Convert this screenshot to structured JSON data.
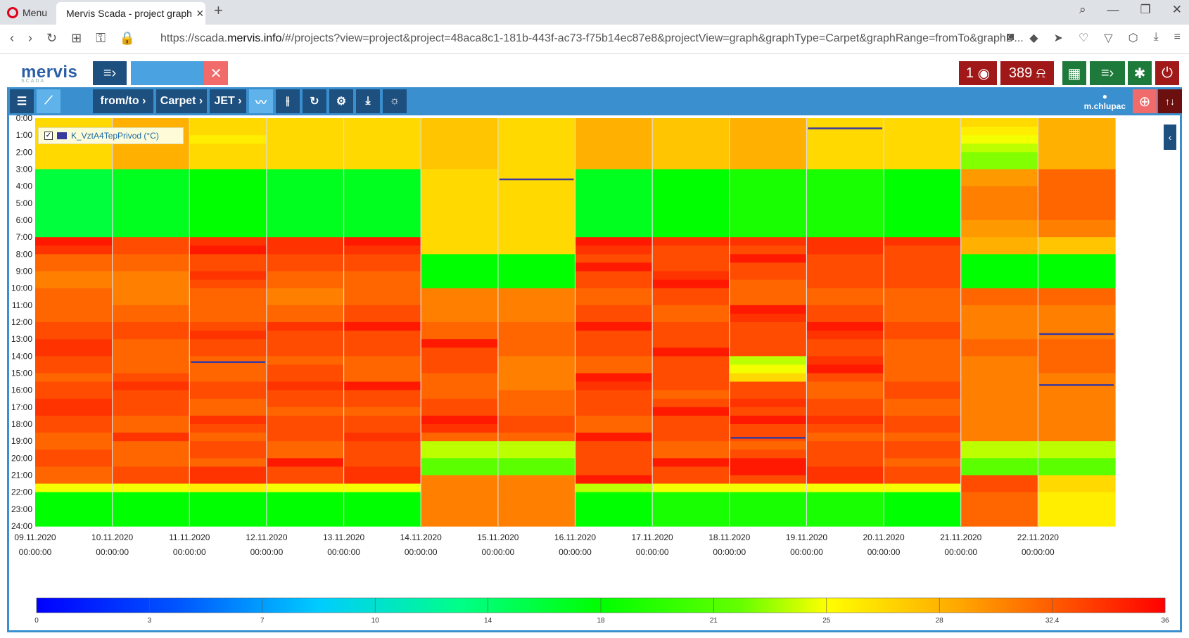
{
  "browser": {
    "menu_label": "Menu",
    "tab_title": "Mervis Scada - project graph",
    "url_prefix": "https://scada.",
    "url_domain": "mervis.info",
    "url_rest": "/#/projects?view=project&project=48aca8c1-181b-443f-ac73-f75b14ec87e8&projectView=graph&graphType=Carpet&graphRange=fromTo&graphD..."
  },
  "header": {
    "logo": "mervis",
    "logo_sub": "SCADA",
    "alarm_count": "1",
    "notification_count": "389"
  },
  "toolbar": {
    "range_label": "from/to",
    "type_label": "Carpet",
    "palette_label": "JET",
    "user": "m.chlupac"
  },
  "legend": {
    "series_name": "K_VztA4TepPrivod (°C)"
  },
  "colors": {
    "accent": "#3a8fcf",
    "dark_button": "#1d4f7f",
    "alarm_red": "#a01818",
    "green_button": "#1e7a3a",
    "gap_line": "#3a3aa0"
  },
  "chart_data": {
    "type": "heatmap",
    "title": "",
    "xlabel": "",
    "ylabel": "",
    "y_ticks": [
      "0:00",
      "1:00",
      "2:00",
      "3:00",
      "4:00",
      "5:00",
      "6:00",
      "7:00",
      "8:00",
      "9:00",
      "10:00",
      "11:00",
      "12:00",
      "13:00",
      "14:00",
      "15:00",
      "16:00",
      "17:00",
      "18:00",
      "19:00",
      "20:00",
      "21:00",
      "22:00",
      "23:00",
      "24:00"
    ],
    "x_dates": [
      "09.11.2020",
      "10.11.2020",
      "11.11.2020",
      "12.11.2020",
      "13.11.2020",
      "14.11.2020",
      "15.11.2020",
      "16.11.2020",
      "17.11.2020",
      "18.11.2020",
      "19.11.2020",
      "20.11.2020",
      "21.11.2020",
      "22.11.2020"
    ],
    "x_time": "00:00:00",
    "colorbar_ticks": [
      "0",
      "3",
      "7",
      "10",
      "14",
      "18",
      "21",
      "25",
      "28",
      "32.4",
      "36"
    ],
    "colorbar_range": [
      0,
      36
    ],
    "colorscale": "jet",
    "hours_per_cell": 0.5,
    "days": [
      [
        27,
        27,
        27,
        27,
        27,
        27,
        16,
        16,
        16,
        16,
        16,
        16,
        16,
        16,
        35,
        34,
        32,
        32,
        31,
        31,
        32,
        32,
        32,
        32,
        33,
        33,
        34,
        34,
        33,
        33,
        32,
        33,
        33,
        34,
        34,
        33,
        33,
        32,
        32,
        33,
        33,
        32,
        32,
        25,
        18,
        18,
        18,
        18
      ],
      [
        29,
        29,
        29,
        29,
        29,
        29,
        17,
        17,
        17,
        17,
        17,
        17,
        17,
        17,
        33,
        33,
        32,
        32,
        31,
        31,
        31,
        31,
        32,
        32,
        33,
        33,
        32,
        32,
        32,
        32,
        33,
        34,
        33,
        33,
        33,
        32,
        32,
        34,
        32,
        32,
        32,
        33,
        33,
        25,
        18,
        18,
        18,
        18
      ],
      [
        27,
        27,
        26,
        27,
        27,
        27,
        18,
        18,
        18,
        18,
        18,
        18,
        18,
        18,
        34,
        35,
        33,
        33,
        34,
        33,
        32,
        32,
        32,
        32,
        33,
        34,
        33,
        33,
        32,
        32,
        32,
        33,
        33,
        32,
        32,
        34,
        33,
        32,
        33,
        33,
        32,
        34,
        34,
        26,
        18,
        18,
        18,
        18
      ],
      [
        27,
        27,
        27,
        27,
        27,
        27,
        17,
        17,
        17,
        17,
        17,
        17,
        17,
        17,
        34,
        34,
        33,
        33,
        32,
        32,
        31,
        31,
        32,
        32,
        34,
        33,
        33,
        33,
        32,
        33,
        33,
        34,
        33,
        33,
        32,
        33,
        33,
        33,
        32,
        32,
        35,
        33,
        33,
        25,
        18,
        18,
        18,
        18
      ],
      [
        27,
        27,
        27,
        27,
        27,
        27,
        17,
        17,
        17,
        17,
        17,
        17,
        17,
        17,
        35,
        34,
        33,
        33,
        32,
        32,
        32,
        32,
        33,
        33,
        35,
        33,
        33,
        33,
        32,
        32,
        32,
        35,
        33,
        33,
        32,
        33,
        33,
        34,
        33,
        33,
        33,
        34,
        34,
        25,
        18,
        18,
        18,
        18
      ],
      [
        28,
        28,
        28,
        28,
        28,
        28,
        27,
        27,
        27,
        27,
        27,
        27,
        27,
        27,
        27,
        27,
        18,
        18,
        18,
        18,
        31,
        31,
        31,
        31,
        32,
        32,
        35,
        33,
        33,
        33,
        32,
        32,
        32,
        33,
        33,
        35,
        34,
        32,
        24,
        24,
        22,
        22,
        31,
        31,
        31,
        31,
        31,
        31
      ],
      [
        27,
        27,
        27,
        27,
        27,
        27,
        27,
        27,
        27,
        27,
        27,
        27,
        27,
        27,
        27,
        27,
        18,
        18,
        18,
        18,
        31,
        31,
        31,
        31,
        32,
        32,
        32,
        32,
        31,
        31,
        31,
        31,
        32,
        32,
        32,
        33,
        33,
        32,
        24,
        24,
        22,
        22,
        31,
        31,
        31,
        31,
        31,
        31
      ],
      [
        29,
        29,
        29,
        29,
        29,
        29,
        17,
        17,
        17,
        17,
        17,
        17,
        17,
        17,
        35,
        34,
        33,
        35,
        33,
        33,
        32,
        32,
        33,
        33,
        35,
        33,
        33,
        33,
        32,
        32,
        35,
        34,
        33,
        33,
        33,
        32,
        32,
        35,
        33,
        33,
        33,
        33,
        35,
        24,
        18,
        18,
        18,
        18
      ],
      [
        28,
        28,
        28,
        28,
        28,
        28,
        18,
        18,
        18,
        18,
        18,
        18,
        18,
        18,
        34,
        33,
        33,
        33,
        34,
        35,
        33,
        33,
        32,
        32,
        33,
        33,
        33,
        35,
        33,
        33,
        33,
        33,
        32,
        33,
        35,
        33,
        33,
        33,
        32,
        32,
        35,
        33,
        33,
        25,
        19,
        19,
        19,
        19
      ],
      [
        29,
        29,
        29,
        29,
        29,
        29,
        19,
        19,
        19,
        19,
        19,
        19,
        19,
        19,
        34,
        33,
        35,
        33,
        33,
        32,
        32,
        32,
        35,
        34,
        33,
        33,
        33,
        33,
        24,
        25,
        27,
        33,
        33,
        34,
        33,
        35,
        33,
        33,
        32,
        33,
        35,
        35,
        33,
        25,
        19,
        19,
        19,
        19
      ],
      [
        27,
        27,
        27,
        27,
        27,
        27,
        19,
        19,
        19,
        19,
        19,
        19,
        19,
        19,
        34,
        34,
        33,
        33,
        33,
        33,
        32,
        32,
        33,
        33,
        35,
        34,
        33,
        33,
        34,
        35,
        33,
        32,
        32,
        33,
        33,
        34,
        33,
        32,
        33,
        33,
        33,
        34,
        34,
        25,
        19,
        19,
        19,
        19
      ],
      [
        27,
        27,
        27,
        27,
        27,
        27,
        18,
        18,
        18,
        18,
        18,
        18,
        18,
        18,
        34,
        33,
        33,
        33,
        33,
        33,
        32,
        32,
        32,
        32,
        33,
        33,
        32,
        32,
        32,
        32,
        32,
        33,
        33,
        32,
        32,
        33,
        33,
        32,
        33,
        33,
        32,
        33,
        33,
        25,
        18,
        18,
        18,
        18
      ],
      [
        27,
        26,
        25,
        24,
        23,
        23,
        30,
        30,
        31,
        31,
        31,
        31,
        30,
        30,
        29,
        29,
        18,
        18,
        18,
        18,
        32,
        32,
        31,
        31,
        31,
        31,
        32,
        32,
        31,
        31,
        31,
        31,
        31,
        31,
        31,
        31,
        31,
        31,
        24,
        24,
        22,
        22,
        33,
        33,
        32,
        32,
        32,
        32
      ],
      [
        29,
        29,
        29,
        29,
        29,
        29,
        32,
        32,
        32,
        32,
        32,
        32,
        31,
        31,
        28,
        28,
        18,
        18,
        18,
        18,
        32,
        32,
        31,
        31,
        31,
        31,
        32,
        32,
        32,
        32,
        31,
        31,
        31,
        31,
        31,
        31,
        31,
        31,
        24,
        24,
        22,
        22,
        27,
        27,
        26,
        26,
        26,
        26
      ]
    ],
    "gaps": [
      {
        "day": 2,
        "hour": 14.35
      },
      {
        "day": 6,
        "hour": 3.6
      },
      {
        "day": 9,
        "hour": 18.8
      },
      {
        "day": 10,
        "hour": 0.6
      },
      {
        "day": 13,
        "hour": 12.7
      },
      {
        "day": 13,
        "hour": 15.7
      }
    ]
  }
}
